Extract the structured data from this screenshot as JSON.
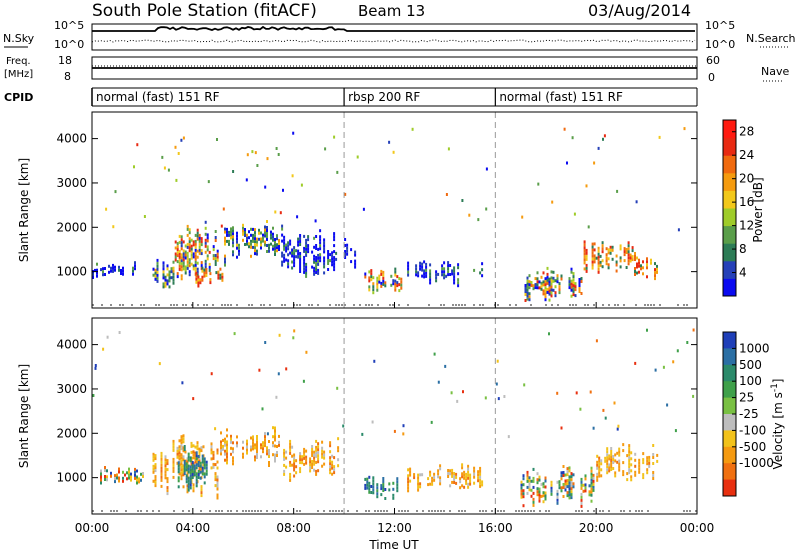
{
  "header": {
    "station": "South Pole Station (fitACF)",
    "beam": "Beam 13",
    "date": "03/Aug/2014"
  },
  "strip": {
    "nsky_label": "N.Sky",
    "nsky_ticks": [
      "10^5",
      "10^0"
    ],
    "nsearch_ticks": [
      "10^5",
      "10^0"
    ],
    "nsearch_label": "N.Search",
    "freq_label": "Freq.",
    "freq_unit": "[MHz]",
    "freq_ticks": [
      "18",
      "8"
    ],
    "nave_ticks": [
      "60",
      "0"
    ],
    "nave_label": "Nave",
    "cpid_label": "CPID"
  },
  "cpid_segments": [
    {
      "label": "normal (fast) 151 RF",
      "start_hour": 0
    },
    {
      "label": "rbsp 200 RF",
      "start_hour": 10
    },
    {
      "label": "normal (fast) 151 RF",
      "start_hour": 16
    }
  ],
  "chart_data": [
    {
      "type": "heatmap",
      "title": "",
      "xlabel": "",
      "ylabel": "Slant Range [km]",
      "xlim_hours": [
        0,
        24
      ],
      "ylim": [
        180,
        4600
      ],
      "y_ticks": [
        1000,
        2000,
        3000,
        4000
      ],
      "colorbar": {
        "label": "Power [dB]",
        "ticks": [
          4,
          8,
          12,
          16,
          20,
          24,
          28
        ],
        "range": [
          0,
          30
        ],
        "colors": [
          "#0b0bf0",
          "#2540b8",
          "#2d7c56",
          "#5a9e4a",
          "#9fcc2a",
          "#f2c81b",
          "#f59b0f",
          "#f06a0f",
          "#e82a12",
          "#ff1a10"
        ]
      },
      "regions": [
        {
          "hours": [
            0.0,
            2.0
          ],
          "range_km": [
            850,
            1250
          ],
          "level": "low"
        },
        {
          "hours": [
            2.4,
            3.2
          ],
          "range_km": [
            550,
            1300
          ],
          "level": "mid"
        },
        {
          "hours": [
            3.2,
            5.0
          ],
          "range_km": [
            700,
            2100
          ],
          "level": "mixed"
        },
        {
          "hours": [
            4.1,
            5.2
          ],
          "range_km": [
            700,
            1100
          ],
          "level": "high"
        },
        {
          "hours": [
            5.0,
            7.4
          ],
          "range_km": [
            1200,
            2200
          ],
          "level": "mid"
        },
        {
          "hours": [
            7.5,
            9.8
          ],
          "range_km": [
            900,
            2000
          ],
          "level": "low"
        },
        {
          "hours": [
            10.0,
            10.6
          ],
          "range_km": [
            900,
            2000
          ],
          "level": "low"
        },
        {
          "hours": [
            10.8,
            12.3
          ],
          "range_km": [
            500,
            1100
          ],
          "level": "mixed"
        },
        {
          "hours": [
            12.5,
            15.5
          ],
          "range_km": [
            700,
            1300
          ],
          "level": "low"
        },
        {
          "hours": [
            17.0,
            19.5
          ],
          "range_km": [
            300,
            1100
          ],
          "level": "mixed"
        },
        {
          "hours": [
            19.5,
            21.5
          ],
          "range_km": [
            900,
            1700
          ],
          "level": "high"
        },
        {
          "hours": [
            21.5,
            22.5
          ],
          "range_km": [
            800,
            1500
          ],
          "level": "high"
        }
      ]
    },
    {
      "type": "heatmap",
      "title": "",
      "xlabel": "Time UT",
      "ylabel": "Slant Range [km]",
      "xlim_hours": [
        0,
        24
      ],
      "ylim": [
        180,
        4600
      ],
      "y_ticks": [
        1000,
        2000,
        3000,
        4000
      ],
      "x_ticks": [
        "00:00",
        "04:00",
        "08:00",
        "12:00",
        "16:00",
        "20:00",
        "00:00"
      ],
      "colorbar": {
        "label": "Velocity [m s^-1]",
        "ticks": [
          1000,
          500,
          100,
          25,
          -25,
          -100,
          -500,
          -1000
        ],
        "colors": [
          "#1f3fb8",
          "#2b6fa4",
          "#2b8a6a",
          "#3fa04a",
          "#79c043",
          "#bdbdbd",
          "#f2c21a",
          "#f59a10",
          "#f07010",
          "#e83010"
        ]
      },
      "regions": [
        {
          "hours": [
            0.0,
            2.0
          ],
          "range_km": [
            850,
            1250
          ],
          "velocity": "mixed"
        },
        {
          "hours": [
            2.4,
            5.0
          ],
          "range_km": [
            550,
            2000
          ],
          "velocity": "toward"
        },
        {
          "hours": [
            3.4,
            4.6
          ],
          "range_km": [
            700,
            1700
          ],
          "velocity": "away"
        },
        {
          "hours": [
            5.0,
            7.4
          ],
          "range_km": [
            1200,
            2200
          ],
          "velocity": "toward"
        },
        {
          "hours": [
            7.5,
            9.8
          ],
          "range_km": [
            900,
            2000
          ],
          "velocity": "toward"
        },
        {
          "hours": [
            10.8,
            12.3
          ],
          "range_km": [
            500,
            1100
          ],
          "velocity": "away"
        },
        {
          "hours": [
            12.5,
            15.5
          ],
          "range_km": [
            700,
            1300
          ],
          "velocity": "toward"
        },
        {
          "hours": [
            17.0,
            20.0
          ],
          "range_km": [
            300,
            1300
          ],
          "velocity": "mixed"
        },
        {
          "hours": [
            20.0,
            22.5
          ],
          "range_km": [
            900,
            1800
          ],
          "velocity": "toward"
        }
      ]
    }
  ]
}
